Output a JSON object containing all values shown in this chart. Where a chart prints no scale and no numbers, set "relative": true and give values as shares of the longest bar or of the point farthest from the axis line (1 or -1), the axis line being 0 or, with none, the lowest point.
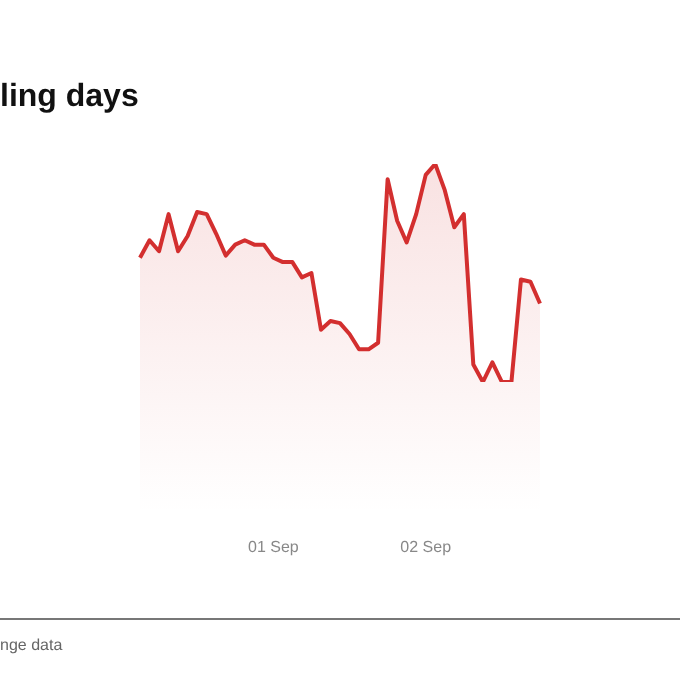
{
  "chart_data": {
    "type": "area",
    "title": "ling days",
    "relative": true,
    "categories": [
      null,
      null,
      null,
      null,
      null,
      null,
      null,
      null,
      null,
      null,
      null,
      null,
      null,
      null,
      "01 Sep",
      null,
      null,
      null,
      null,
      null,
      null,
      null,
      null,
      null,
      null,
      null,
      null,
      null,
      null,
      null,
      "02 Sep",
      null,
      null,
      null,
      null,
      null,
      null,
      null,
      null,
      null,
      null,
      null,
      null
    ],
    "values": [
      0.57,
      0.65,
      0.6,
      0.77,
      0.6,
      0.67,
      0.78,
      0.77,
      0.68,
      0.58,
      0.63,
      0.65,
      0.63,
      0.63,
      0.57,
      0.55,
      0.55,
      0.48,
      0.5,
      0.24,
      0.28,
      0.27,
      0.22,
      0.15,
      0.15,
      0.18,
      0.93,
      0.74,
      0.64,
      0.77,
      0.95,
      1,
      0.88,
      0.71,
      0.77,
      0.08,
      0,
      0.09,
      0,
      0,
      0.47,
      0.46,
      0.36
    ],
    "color": "#d32f2f",
    "annotations": [
      "nge data"
    ]
  }
}
